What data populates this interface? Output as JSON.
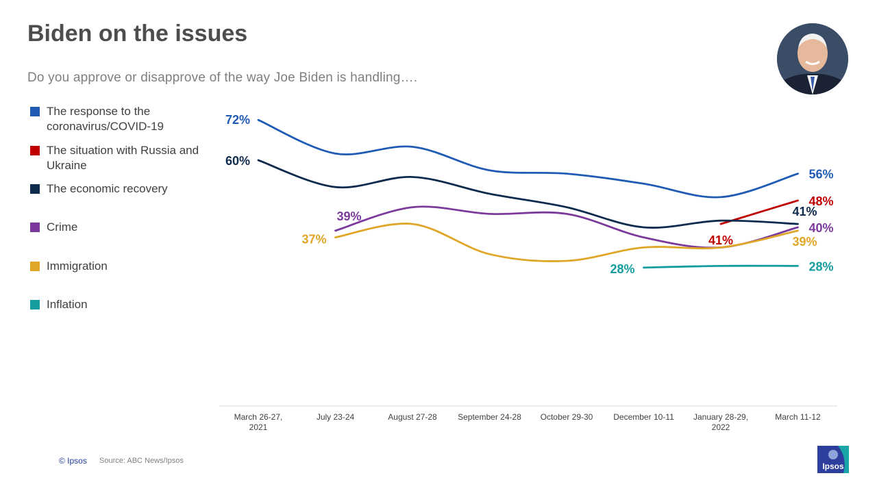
{
  "header": {
    "title": "Biden on the issues",
    "subtitle": "Do you approve or disapprove of the way Joe Biden is handling…."
  },
  "footer": {
    "copyright": "© Ipsos",
    "source": "Source: ABC News/Ipsos",
    "logo_text": "Ipsos"
  },
  "colors": {
    "covid": "#1f5bb5",
    "russia": "#c00000",
    "economy": "#0e2a4d",
    "crime": "#7b3a9b",
    "immigration": "#e0a628",
    "inflation": "#149c9e"
  },
  "chart_data": {
    "type": "line",
    "title": "Biden on the issues",
    "categories": [
      "March 26-27,\n2021",
      "July 23-24",
      "August 27-28",
      "September 24-28",
      "October 29-30",
      "December 10-11",
      "January 28-29,\n2022",
      "March 11-12"
    ],
    "ylim": [
      0,
      100
    ],
    "grid": false,
    "legend_position": "left",
    "series": [
      {
        "key": "covid",
        "name": "The response to the coronavirus/COVID-19",
        "color": "#1f5bb5",
        "values": [
          72,
          62,
          64,
          57,
          56,
          53,
          49,
          56
        ],
        "labels": [
          {
            "index": 0,
            "text": "72%"
          },
          {
            "index": 7,
            "text": "56%"
          }
        ]
      },
      {
        "key": "russia",
        "name": "The situation with Russia and Ukraine",
        "color": "#c00000",
        "values": [
          null,
          null,
          null,
          null,
          null,
          null,
          41,
          48
        ],
        "labels": [
          {
            "index": 6,
            "text": "41%"
          },
          {
            "index": 7,
            "text": "48%"
          }
        ]
      },
      {
        "key": "economy",
        "name": "The economic recovery",
        "color": "#0e2a4d",
        "values": [
          60,
          52,
          55,
          50,
          46,
          40,
          42,
          41
        ],
        "labels": [
          {
            "index": 0,
            "text": "60%"
          },
          {
            "index": 7,
            "text": "41%"
          }
        ]
      },
      {
        "key": "crime",
        "name": "Crime",
        "color": "#7b3a9b",
        "values": [
          null,
          39,
          46,
          44,
          44,
          37,
          34,
          40
        ],
        "labels": [
          {
            "index": 1,
            "text": "39%"
          },
          {
            "index": 7,
            "text": "40%"
          }
        ]
      },
      {
        "key": "immigration",
        "name": "Immigration",
        "color": "#e0a628",
        "values": [
          null,
          37,
          41,
          32,
          30,
          34,
          34,
          39
        ],
        "labels": [
          {
            "index": 1,
            "text": "37%"
          },
          {
            "index": 7,
            "text": "39%"
          }
        ]
      },
      {
        "key": "inflation",
        "name": "Inflation",
        "color": "#149c9e",
        "values": [
          null,
          null,
          null,
          null,
          null,
          28,
          28.5,
          28.5
        ],
        "labels": [
          {
            "index": 5,
            "text": "28%"
          },
          {
            "index": 7,
            "text": "28%"
          }
        ]
      }
    ]
  }
}
